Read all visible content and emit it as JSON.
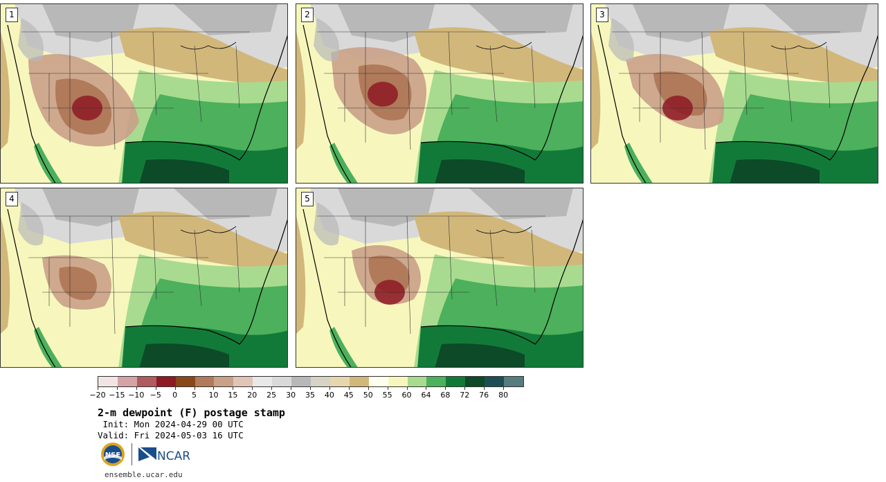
{
  "panels": [
    {
      "label": "1"
    },
    {
      "label": "2"
    },
    {
      "label": "3"
    },
    {
      "label": "4"
    },
    {
      "label": "5"
    }
  ],
  "legend": {
    "colors": [
      "#f3e4e4",
      "#d4a3a6",
      "#b05b60",
      "#8e1a24",
      "#8a4719",
      "#b07a5b",
      "#c9a088",
      "#e0c5b6",
      "#e8e8e8",
      "#d9d9d9",
      "#b8b8b8",
      "#d6d3c4",
      "#e6d6ad",
      "#d2b77a",
      "#fffff0",
      "#f7f7bd",
      "#a8db8f",
      "#4cb05c",
      "#127a38",
      "#0c4a28",
      "#1d4e56",
      "#567c80"
    ],
    "ticks": [
      "−20",
      "−15",
      "−10",
      "−5",
      "0",
      "5",
      "10",
      "15",
      "20",
      "25",
      "30",
      "35",
      "40",
      "45",
      "50",
      "55",
      "60",
      "64",
      "68",
      "72",
      "76",
      "80"
    ]
  },
  "title": "2-m dewpoint (F) postage stamp",
  "init": " Init: Mon 2024-04-29 00 UTC",
  "valid": "Valid: Fri 2024-05-03 16 UTC",
  "logos": {
    "nsf": "NSF",
    "ncar": "NCAR"
  },
  "url": "ensemble.ucar.edu"
}
